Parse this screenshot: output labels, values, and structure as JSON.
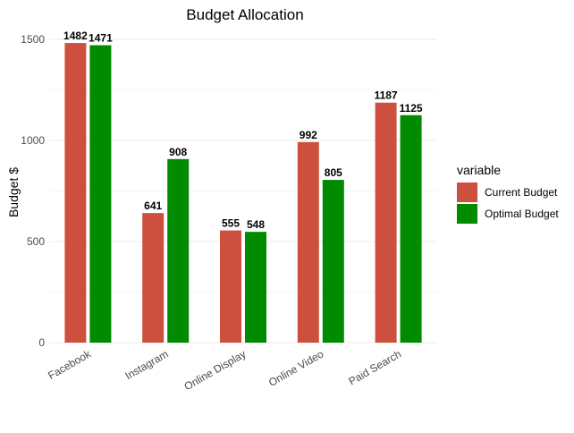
{
  "chart_data": {
    "type": "bar",
    "title": "Budget Allocation",
    "xlabel": "",
    "ylabel": "Budget $",
    "categories": [
      "Facebook",
      "Instagram",
      "Online Display",
      "Online Video",
      "Paid Search"
    ],
    "series": [
      {
        "name": "Current Budget",
        "color": "#cd4f3e",
        "values": [
          1482,
          641,
          555,
          992,
          1187
        ]
      },
      {
        "name": "Optimal Budget",
        "color": "#008b00",
        "values": [
          1471,
          908,
          548,
          805,
          1125
        ]
      }
    ],
    "ylim": [
      0,
      1500
    ],
    "yticks": [
      0,
      500,
      1000,
      1500
    ],
    "ytick_labels": [
      "0",
      "500",
      "1000",
      "1500"
    ],
    "grid": true,
    "legend": {
      "title": "variable",
      "position": "right"
    }
  }
}
